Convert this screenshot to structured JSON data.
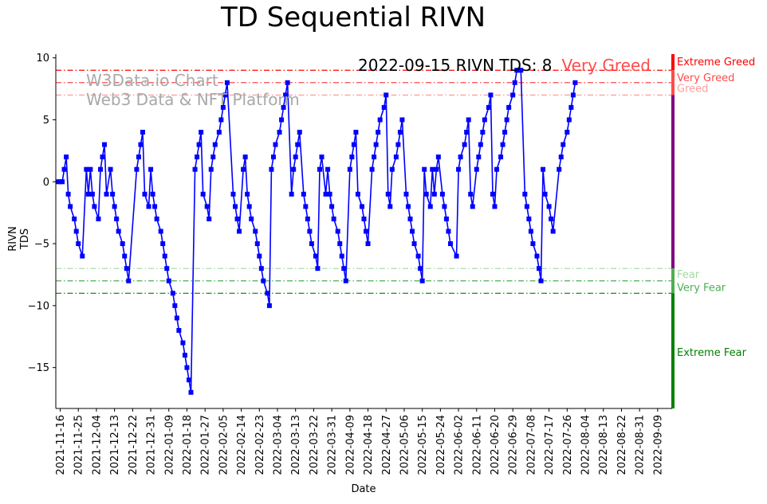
{
  "title": "TD Sequential RIVN",
  "annotation": {
    "text": "2022-09-15 RIVN TDS: 8",
    "zone": "Very Greed",
    "zone_color": "#ff4b4b"
  },
  "watermark": {
    "line1": "W3Data.io Chart",
    "line2": "Web3 Data & NFT Platform",
    "color": "#a9a9a9"
  },
  "zones": [
    {
      "label": "Extreme Greed",
      "level": 9,
      "color": "#ff0000"
    },
    {
      "label": "Very Greed",
      "level": 8,
      "color": "#ff4b4b"
    },
    {
      "label": "Greed",
      "level": 7,
      "color": "#ff9c9c"
    },
    {
      "label": "Fear",
      "level": -7,
      "color": "#a3d9a3"
    },
    {
      "label": "Very Fear",
      "level": -8,
      "color": "#4caf50"
    },
    {
      "label": "Extreme Fear",
      "level": -9,
      "color": "#008000"
    }
  ],
  "chart_data": {
    "type": "line",
    "title": "TD Sequential RIVN",
    "xlabel": "Date",
    "ylabel": "RIVN TDS",
    "ylim": [
      -18.3,
      10.3
    ],
    "yticks": [
      10,
      5,
      0,
      -5,
      -10,
      -15
    ],
    "x_start": "2021-11-15",
    "x_end": "2022-09-15",
    "xticks": [
      "2021-11-16",
      "2021-11-25",
      "2021-12-04",
      "2021-12-13",
      "2021-12-22",
      "2021-12-31",
      "2022-01-09",
      "2022-01-18",
      "2022-01-27",
      "2022-02-05",
      "2022-02-14",
      "2022-02-23",
      "2022-03-04",
      "2022-03-13",
      "2022-03-22",
      "2022-03-31",
      "2022-04-09",
      "2022-04-18",
      "2022-04-27",
      "2022-05-06",
      "2022-05-15",
      "2022-05-24",
      "2022-06-02",
      "2022-06-11",
      "2022-06-20",
      "2022-06-29",
      "2022-07-08",
      "2022-07-17",
      "2022-07-26",
      "2022-08-04",
      "2022-08-13",
      "2022-08-22",
      "2022-08-31",
      "2022-09-09"
    ],
    "series": [
      {
        "name": "RIVN TDS",
        "color": "#0000ff",
        "marker": "square",
        "points": [
          [
            "2021-11-15",
            0
          ],
          [
            "2021-11-16",
            0
          ],
          [
            "2021-11-17",
            0
          ],
          [
            "2021-11-18",
            1
          ],
          [
            "2021-11-19",
            2
          ],
          [
            "2021-11-20",
            -1
          ],
          [
            "2021-11-21",
            -2
          ],
          [
            "2021-11-23",
            -3
          ],
          [
            "2021-11-24",
            -4
          ],
          [
            "2021-11-25",
            -5
          ],
          [
            "2021-11-27",
            -6
          ],
          [
            "2021-11-29",
            1
          ],
          [
            "2021-11-30",
            -1
          ],
          [
            "2021-12-01",
            1
          ],
          [
            "2021-12-02",
            -1
          ],
          [
            "2021-12-03",
            -2
          ],
          [
            "2021-12-05",
            -3
          ],
          [
            "2021-12-06",
            1
          ],
          [
            "2021-12-07",
            2
          ],
          [
            "2021-12-08",
            3
          ],
          [
            "2021-12-09",
            -1
          ],
          [
            "2021-12-11",
            1
          ],
          [
            "2021-12-12",
            -1
          ],
          [
            "2021-12-13",
            -2
          ],
          [
            "2021-12-14",
            -3
          ],
          [
            "2021-12-15",
            -4
          ],
          [
            "2021-12-17",
            -5
          ],
          [
            "2021-12-18",
            -6
          ],
          [
            "2021-12-19",
            -7
          ],
          [
            "2021-12-20",
            -8
          ],
          [
            "2021-12-24",
            1
          ],
          [
            "2021-12-25",
            2
          ],
          [
            "2021-12-26",
            3
          ],
          [
            "2021-12-27",
            4
          ],
          [
            "2021-12-28",
            -1
          ],
          [
            "2021-12-30",
            -2
          ],
          [
            "2021-12-31",
            1
          ],
          [
            "2022-01-01",
            -1
          ],
          [
            "2022-01-02",
            -2
          ],
          [
            "2022-01-03",
            -3
          ],
          [
            "2022-01-05",
            -4
          ],
          [
            "2022-01-06",
            -5
          ],
          [
            "2022-01-07",
            -6
          ],
          [
            "2022-01-08",
            -7
          ],
          [
            "2022-01-09",
            -8
          ],
          [
            "2022-01-11",
            -9
          ],
          [
            "2022-01-12",
            -10
          ],
          [
            "2022-01-13",
            -11
          ],
          [
            "2022-01-14",
            -12
          ],
          [
            "2022-01-16",
            -13
          ],
          [
            "2022-01-17",
            -14
          ],
          [
            "2022-01-18",
            -15
          ],
          [
            "2022-01-19",
            -16
          ],
          [
            "2022-01-20",
            -17
          ],
          [
            "2022-01-22",
            1
          ],
          [
            "2022-01-23",
            2
          ],
          [
            "2022-01-24",
            3
          ],
          [
            "2022-01-25",
            4
          ],
          [
            "2022-01-26",
            -1
          ],
          [
            "2022-01-28",
            -2
          ],
          [
            "2022-01-29",
            -3
          ],
          [
            "2022-01-30",
            1
          ],
          [
            "2022-01-31",
            2
          ],
          [
            "2022-02-01",
            3
          ],
          [
            "2022-02-03",
            4
          ],
          [
            "2022-02-04",
            5
          ],
          [
            "2022-02-05",
            6
          ],
          [
            "2022-02-06",
            7
          ],
          [
            "2022-02-07",
            8
          ],
          [
            "2022-02-10",
            -1
          ],
          [
            "2022-02-11",
            -2
          ],
          [
            "2022-02-12",
            -3
          ],
          [
            "2022-02-13",
            -4
          ],
          [
            "2022-02-15",
            1
          ],
          [
            "2022-02-16",
            2
          ],
          [
            "2022-02-17",
            -1
          ],
          [
            "2022-02-18",
            -2
          ],
          [
            "2022-02-19",
            -3
          ],
          [
            "2022-02-21",
            -4
          ],
          [
            "2022-02-22",
            -5
          ],
          [
            "2022-02-23",
            -6
          ],
          [
            "2022-02-24",
            -7
          ],
          [
            "2022-02-25",
            -8
          ],
          [
            "2022-02-27",
            -9
          ],
          [
            "2022-02-28",
            -10
          ],
          [
            "2022-03-01",
            1
          ],
          [
            "2022-03-02",
            2
          ],
          [
            "2022-03-03",
            3
          ],
          [
            "2022-03-05",
            4
          ],
          [
            "2022-03-06",
            5
          ],
          [
            "2022-03-07",
            6
          ],
          [
            "2022-03-08",
            7
          ],
          [
            "2022-03-09",
            8
          ],
          [
            "2022-03-11",
            -1
          ],
          [
            "2022-03-12",
            1
          ],
          [
            "2022-03-13",
            2
          ],
          [
            "2022-03-14",
            3
          ],
          [
            "2022-03-15",
            4
          ],
          [
            "2022-03-17",
            -1
          ],
          [
            "2022-03-18",
            -2
          ],
          [
            "2022-03-19",
            -3
          ],
          [
            "2022-03-20",
            -4
          ],
          [
            "2022-03-21",
            -5
          ],
          [
            "2022-03-23",
            -6
          ],
          [
            "2022-03-24",
            -7
          ],
          [
            "2022-03-25",
            1
          ],
          [
            "2022-03-26",
            2
          ],
          [
            "2022-03-28",
            -1
          ],
          [
            "2022-03-29",
            1
          ],
          [
            "2022-03-30",
            -1
          ],
          [
            "2022-03-31",
            -2
          ],
          [
            "2022-04-01",
            -3
          ],
          [
            "2022-04-03",
            -4
          ],
          [
            "2022-04-04",
            -5
          ],
          [
            "2022-04-05",
            -6
          ],
          [
            "2022-04-06",
            -7
          ],
          [
            "2022-04-07",
            -8
          ],
          [
            "2022-04-09",
            1
          ],
          [
            "2022-04-10",
            2
          ],
          [
            "2022-04-11",
            3
          ],
          [
            "2022-04-12",
            4
          ],
          [
            "2022-04-13",
            -1
          ],
          [
            "2022-04-15",
            -2
          ],
          [
            "2022-04-16",
            -3
          ],
          [
            "2022-04-17",
            -4
          ],
          [
            "2022-04-18",
            -5
          ],
          [
            "2022-04-20",
            1
          ],
          [
            "2022-04-21",
            2
          ],
          [
            "2022-04-22",
            3
          ],
          [
            "2022-04-23",
            4
          ],
          [
            "2022-04-24",
            5
          ],
          [
            "2022-04-26",
            6
          ],
          [
            "2022-04-27",
            7
          ],
          [
            "2022-04-28",
            -1
          ],
          [
            "2022-04-29",
            -2
          ],
          [
            "2022-04-30",
            1
          ],
          [
            "2022-05-02",
            2
          ],
          [
            "2022-05-03",
            3
          ],
          [
            "2022-05-04",
            4
          ],
          [
            "2022-05-05",
            5
          ],
          [
            "2022-05-07",
            -1
          ],
          [
            "2022-05-08",
            -2
          ],
          [
            "2022-05-09",
            -3
          ],
          [
            "2022-05-10",
            -4
          ],
          [
            "2022-05-11",
            -5
          ],
          [
            "2022-05-13",
            -6
          ],
          [
            "2022-05-14",
            -7
          ],
          [
            "2022-05-15",
            -8
          ],
          [
            "2022-05-16",
            1
          ],
          [
            "2022-05-17",
            -1
          ],
          [
            "2022-05-19",
            -2
          ],
          [
            "2022-05-20",
            1
          ],
          [
            "2022-05-21",
            -1
          ],
          [
            "2022-05-22",
            1
          ],
          [
            "2022-05-23",
            2
          ],
          [
            "2022-05-25",
            -1
          ],
          [
            "2022-05-26",
            -2
          ],
          [
            "2022-05-27",
            -3
          ],
          [
            "2022-05-28",
            -4
          ],
          [
            "2022-05-29",
            -5
          ],
          [
            "2022-06-01",
            -6
          ],
          [
            "2022-06-02",
            1
          ],
          [
            "2022-06-03",
            2
          ],
          [
            "2022-06-05",
            3
          ],
          [
            "2022-06-06",
            4
          ],
          [
            "2022-06-07",
            5
          ],
          [
            "2022-06-08",
            -1
          ],
          [
            "2022-06-09",
            -2
          ],
          [
            "2022-06-11",
            1
          ],
          [
            "2022-06-12",
            2
          ],
          [
            "2022-06-13",
            3
          ],
          [
            "2022-06-14",
            4
          ],
          [
            "2022-06-15",
            5
          ],
          [
            "2022-06-17",
            6
          ],
          [
            "2022-06-18",
            7
          ],
          [
            "2022-06-19",
            -1
          ],
          [
            "2022-06-20",
            -2
          ],
          [
            "2022-06-21",
            1
          ],
          [
            "2022-06-23",
            2
          ],
          [
            "2022-06-24",
            3
          ],
          [
            "2022-06-25",
            4
          ],
          [
            "2022-06-26",
            5
          ],
          [
            "2022-06-27",
            6
          ],
          [
            "2022-06-29",
            7
          ],
          [
            "2022-06-30",
            8
          ],
          [
            "2022-07-01",
            9
          ],
          [
            "2022-07-02",
            9
          ],
          [
            "2022-07-03",
            9
          ],
          [
            "2022-07-05",
            -1
          ],
          [
            "2022-07-06",
            -2
          ],
          [
            "2022-07-07",
            -3
          ],
          [
            "2022-07-08",
            -4
          ],
          [
            "2022-07-09",
            -5
          ],
          [
            "2022-07-11",
            -6
          ],
          [
            "2022-07-12",
            -7
          ],
          [
            "2022-07-13",
            -8
          ],
          [
            "2022-07-14",
            1
          ],
          [
            "2022-07-15",
            -1
          ],
          [
            "2022-07-17",
            -2
          ],
          [
            "2022-07-18",
            -3
          ],
          [
            "2022-07-19",
            -4
          ],
          [
            "2022-07-22",
            1
          ],
          [
            "2022-07-23",
            2
          ],
          [
            "2022-07-24",
            3
          ],
          [
            "2022-07-26",
            4
          ],
          [
            "2022-07-27",
            5
          ],
          [
            "2022-07-28",
            6
          ],
          [
            "2022-07-29",
            7
          ],
          [
            "2022-07-30",
            8
          ]
        ]
      }
    ]
  }
}
